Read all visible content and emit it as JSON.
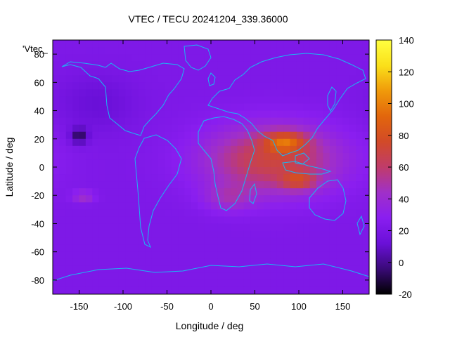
{
  "chart_data": {
    "type": "heatmap",
    "title": "VTEC / TECU 20241204_339.36000",
    "xlabel": "Longitude / deg",
    "ylabel": "Latitude / deg",
    "legend_key": "'Vtec_",
    "xlim": [
      -180,
      180
    ],
    "ylim": [
      -90,
      90
    ],
    "x_ticks": [
      -150,
      -100,
      -50,
      0,
      50,
      100,
      150
    ],
    "y_ticks": [
      -80,
      -60,
      -40,
      -20,
      0,
      20,
      40,
      60,
      80
    ],
    "colorbar": {
      "range": [
        -20,
        140
      ],
      "ticks": [
        -20,
        0,
        20,
        40,
        60,
        80,
        100,
        120,
        140
      ],
      "palette": [
        "#000000",
        "#3a0a78",
        "#6a10d8",
        "#8a1ef0",
        "#a030c8",
        "#c03c6a",
        "#d24a28",
        "#e2660c",
        "#f09a0a",
        "#fae01a",
        "#ffff40"
      ]
    },
    "grid": {
      "lon_step": 7.5,
      "lat_step": 5,
      "lat_rows_north_to_south": [
        87.5,
        82.5,
        77.5,
        72.5,
        67.5,
        62.5,
        57.5,
        52.5,
        47.5,
        42.5,
        37.5,
        32.5,
        27.5,
        22.5,
        17.5,
        12.5,
        7.5,
        2.5,
        -2.5,
        -7.5,
        -12.5,
        -17.5,
        -22.5,
        -27.5,
        -32.5,
        -37.5,
        -42.5,
        -47.5,
        -52.5,
        -57.5,
        -62.5,
        -67.5,
        -72.5,
        -77.5,
        -82.5,
        -87.5
      ],
      "background_vtec": 22,
      "regions": [
        {
          "name": "equatorial-anomaly-africa-asia",
          "lon": 70,
          "lat": 5,
          "lon_radius": 95,
          "lat_radius": 30,
          "peak_vtec": 48
        },
        {
          "name": "india-crest",
          "lon": 85,
          "lat": 18,
          "lon_radius": 30,
          "lat_radius": 9,
          "peak_vtec": 42
        },
        {
          "name": "indonesia-crest",
          "lon": 100,
          "lat": -10,
          "lon_radius": 25,
          "lat_radius": 8,
          "peak_vtec": 30
        },
        {
          "name": "southern-africa",
          "lon": 20,
          "lat": -22,
          "lon_radius": 35,
          "lat_radius": 12,
          "peak_vtec": 18
        },
        {
          "name": "south-pacific-patch",
          "lon": -145,
          "lat": -21,
          "lon_radius": 15,
          "lat_radius": 5,
          "peak_vtec": 22
        },
        {
          "name": "north-pacific-hole",
          "lon": -150,
          "lat": 22,
          "lon_radius": 12,
          "lat_radius": 7,
          "peak_vtec": -30
        },
        {
          "name": "north-polar-depletion",
          "lon": -130,
          "lat": 45,
          "lon_radius": 55,
          "lat_radius": 25,
          "peak_vtec": -10
        }
      ]
    },
    "overlay": "coastlines"
  }
}
